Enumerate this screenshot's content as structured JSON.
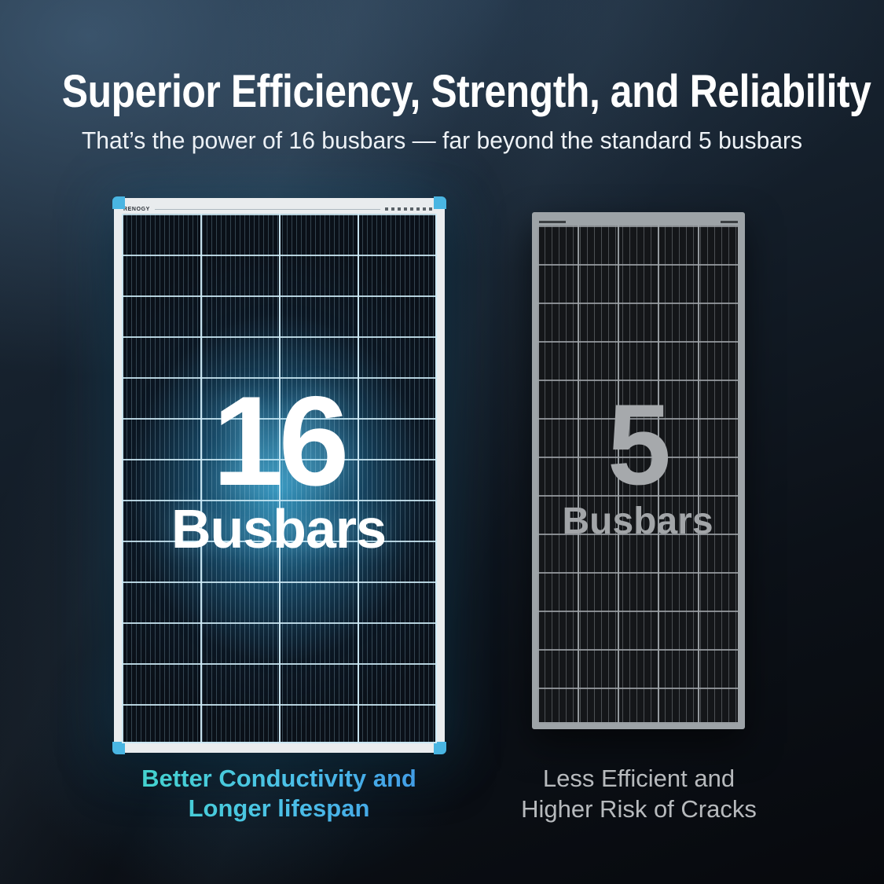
{
  "header": {
    "title": "Superior Efficiency, Strength, and Reliability",
    "subtitle": "That’s the power of 16 busbars — far beyond the standard 5 busbars"
  },
  "comparison": {
    "left": {
      "brand_label": "RENOGY",
      "busbar_count": "16",
      "busbar_word": "Busbars",
      "caption_line1": "Better Conductivity and",
      "caption_line2": "Longer lifespan",
      "accent_color": "#49b5e2",
      "panel_glow_color": "#2e8fc0",
      "caption_gradient_start": "#41d8c6",
      "caption_gradient_end": "#3e8fe6"
    },
    "right": {
      "busbar_count": "5",
      "busbar_word": "Busbars",
      "caption_line1": "Less Efficient and",
      "caption_line2": "Higher Risk of Cracks",
      "frame_color": "#9da3a7",
      "number_color": "#a6a9ac",
      "caption_color": "#b7babd"
    }
  }
}
